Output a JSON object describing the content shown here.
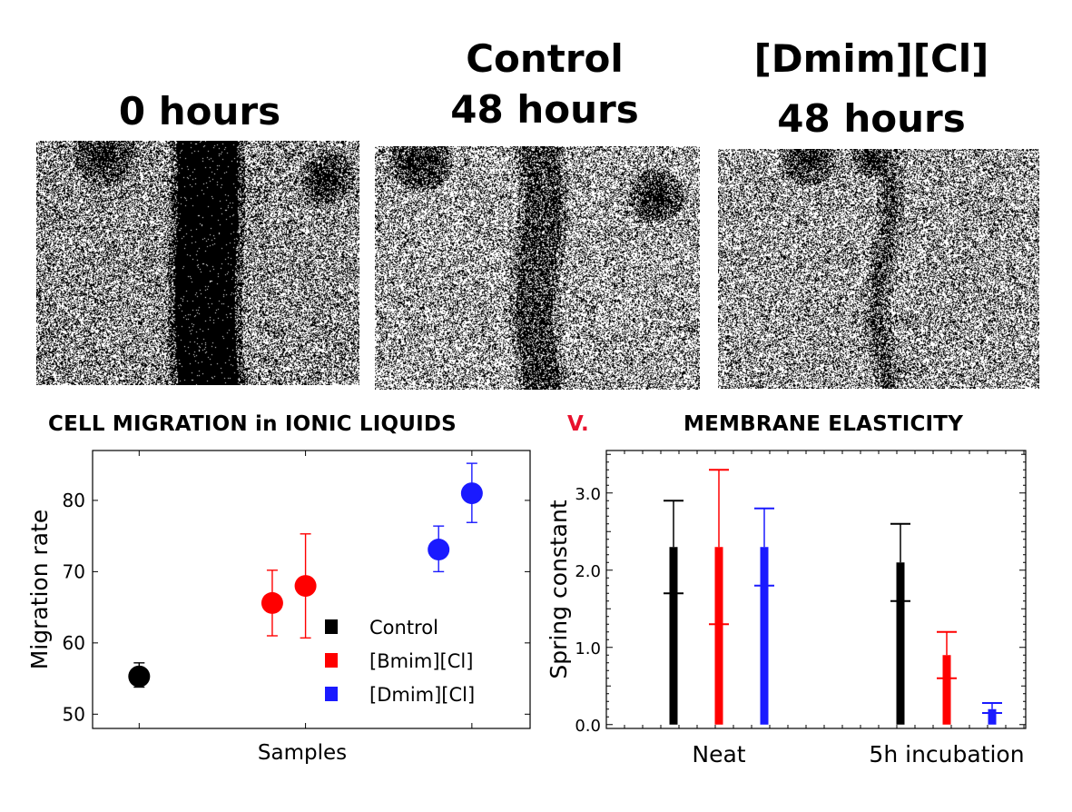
{
  "panels": [
    {
      "title_lines": [
        "0 hours"
      ]
    },
    {
      "title_lines": [
        "Control",
        "48 hours"
      ]
    },
    {
      "title_lines": [
        "[Dmim][Cl]",
        "48 hours"
      ]
    }
  ],
  "sections": {
    "left_title": "CELL MIGRATION in IONIC LIQUIDS",
    "versus": "V.",
    "right_title": "MEMBRANE ELASTICITY"
  },
  "colors": {
    "black": "#000000",
    "red": "#ff0000",
    "blue": "#1a1aff",
    "versus": "#e8112d"
  },
  "chart_data": [
    {
      "type": "scatter",
      "xlabel": "Samples",
      "ylabel": "Migration rate",
      "ylim": [
        48,
        87
      ],
      "yticks": [
        50,
        60,
        70,
        80
      ],
      "legend": {
        "placement": "bottom-right",
        "entries": [
          "Control",
          "[Bmim][Cl]",
          "[Dmim][Cl]"
        ]
      },
      "series": [
        {
          "name": "Control",
          "color": "#000000",
          "points": [
            {
              "x": 1.0,
              "y": 55.3,
              "err_low": 53.8,
              "err_high": 57.2
            }
          ]
        },
        {
          "name": "[Bmim][Cl]",
          "color": "#ff0000",
          "points": [
            {
              "x": 1.8,
              "y": 65.6,
              "err_low": 61.0,
              "err_high": 70.2
            },
            {
              "x": 2.0,
              "y": 68.0,
              "err_low": 60.7,
              "err_high": 75.3
            }
          ]
        },
        {
          "name": "[Dmim][Cl]",
          "color": "#1a1aff",
          "points": [
            {
              "x": 2.8,
              "y": 73.1,
              "err_low": 70.0,
              "err_high": 76.4
            },
            {
              "x": 3.0,
              "y": 81.0,
              "err_low": 76.9,
              "err_high": 85.2
            }
          ]
        }
      ]
    },
    {
      "type": "bar",
      "xlabel": "",
      "ylabel": "Spring constant",
      "ylim": [
        -0.05,
        3.55
      ],
      "yticks": [
        "0.0",
        "1.0",
        "2.0",
        "3.0"
      ],
      "categories": [
        "Neat",
        "5h incubation"
      ],
      "series": [
        {
          "name": "Control",
          "color": "#000000",
          "values": [
            {
              "top": 2.3,
              "mid": 1.7,
              "err_high": 2.9
            },
            {
              "top": 2.1,
              "mid": 1.6,
              "err_high": 2.6
            }
          ]
        },
        {
          "name": "[Bmim][Cl]",
          "color": "#ff0000",
          "values": [
            {
              "top": 2.3,
              "mid": 1.3,
              "err_high": 3.3
            },
            {
              "top": 0.9,
              "mid": 0.6,
              "err_high": 1.2
            }
          ]
        },
        {
          "name": "[Dmim][Cl]",
          "color": "#1a1aff",
          "values": [
            {
              "top": 2.3,
              "mid": 1.8,
              "err_high": 2.8
            },
            {
              "top": 0.2,
              "mid": 0.15,
              "err_high": 0.28
            }
          ]
        }
      ]
    }
  ]
}
